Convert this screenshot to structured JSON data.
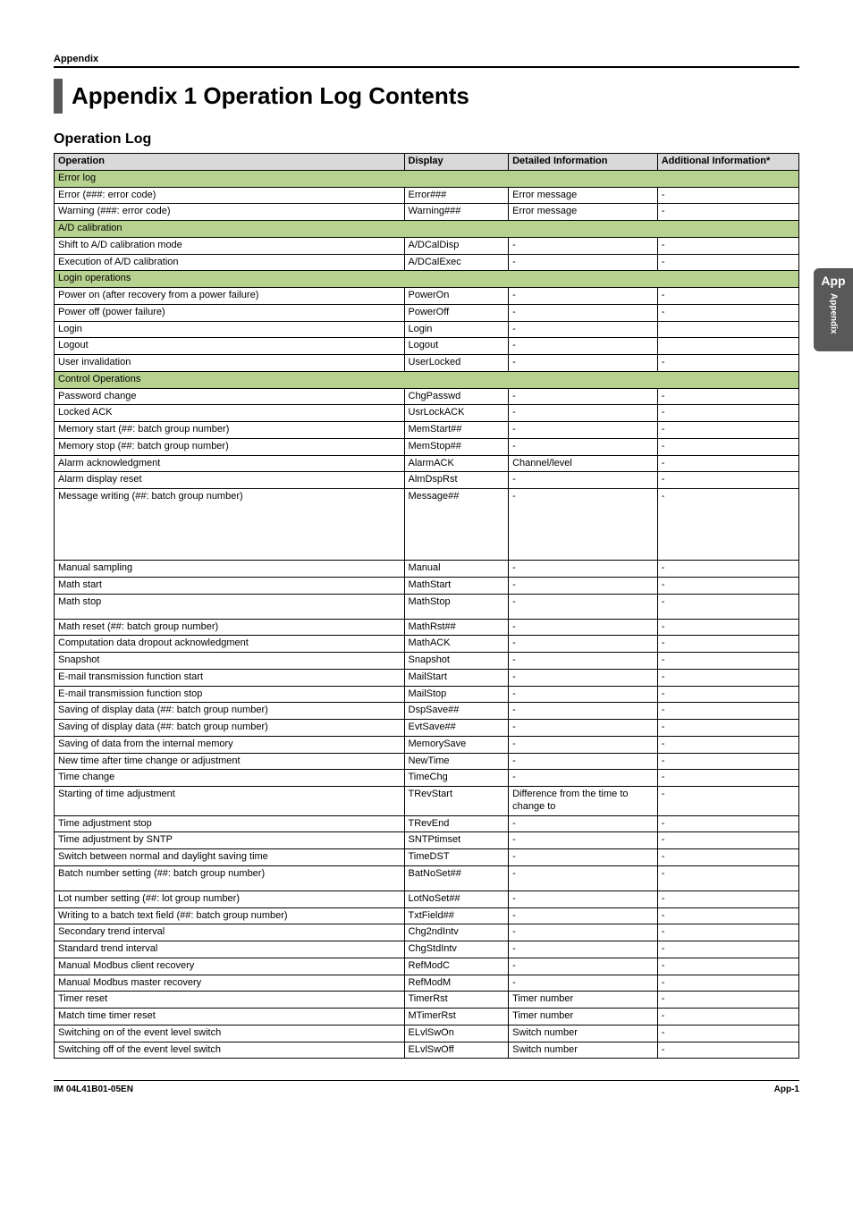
{
  "section_label": "Appendix",
  "page_title": "Appendix 1 Operation Log Contents",
  "subheading": "Operation Log",
  "side_tab": {
    "short": "App",
    "long": "Appendix"
  },
  "footer": {
    "left": "IM 04L41B01-05EN",
    "right": "App-1"
  },
  "columns": {
    "operation": "Operation",
    "display": "Display",
    "detailed": "Detailed Information",
    "additional": "Additional Information*"
  },
  "colors": {
    "header_bg": "#d9d9d9",
    "group_bg": "#b7d28e",
    "bar": "#595959",
    "tab_bg": "#595959",
    "tab_fg": "#ffffff",
    "border": "#000000",
    "page_bg": "#ffffff"
  },
  "rows": [
    {
      "type": "group",
      "op": "Error log"
    },
    {
      "op": "Error (###: error code)",
      "disp": "Error###",
      "det": "Error message",
      "add": "-"
    },
    {
      "op": "Warning (###: error code)",
      "disp": "Warning###",
      "det": "Error message",
      "add": "-"
    },
    {
      "type": "group",
      "op": "A/D calibration"
    },
    {
      "op": "Shift to A/D calibration mode",
      "disp": "A/DCalDisp",
      "det": "-",
      "add": "-"
    },
    {
      "op": "Execution of A/D calibration",
      "disp": "A/DCalExec",
      "det": "-",
      "add": "-"
    },
    {
      "type": "group",
      "op": "Login operations"
    },
    {
      "op": "Power on (after recovery from a power failure)",
      "disp": "PowerOn",
      "det": "-",
      "add": "-"
    },
    {
      "op": "Power off (power failure)",
      "disp": "PowerOff",
      "det": "-",
      "add": "-"
    },
    {
      "op": "Login",
      "disp": "Login",
      "det": "-",
      "add": ""
    },
    {
      "op": "Logout",
      "disp": "Logout",
      "det": "-",
      "add": ""
    },
    {
      "op": "User invalidation",
      "disp": "UserLocked",
      "det": "-",
      "add": "-"
    },
    {
      "type": "group",
      "op": "Control Operations"
    },
    {
      "op": "Password change",
      "disp": "ChgPasswd",
      "det": "-",
      "add": "-"
    },
    {
      "op": "Locked ACK",
      "disp": "UsrLockACK",
      "det": "-",
      "add": "-"
    },
    {
      "op": "Memory start (##: batch group number)",
      "disp": "MemStart##",
      "det": "-",
      "add": "-"
    },
    {
      "op": "Memory stop (##: batch group number)",
      "disp": "MemStop##",
      "det": "-",
      "add": "-"
    },
    {
      "op": "Alarm acknowledgment",
      "disp": "AlarmACK",
      "det": "Channel/level",
      "add": "-"
    },
    {
      "op": "Alarm display reset",
      "disp": "AlmDspRst",
      "det": "-",
      "add": "-"
    },
    {
      "op": "Message writing (##: batch group number)",
      "disp": "Message##",
      "det": "-",
      "add": "-",
      "tall": true
    },
    {
      "op": "Manual sampling",
      "disp": "Manual",
      "det": "-",
      "add": "-"
    },
    {
      "op": "Math start",
      "disp": "MathStart",
      "det": "-",
      "add": "-"
    },
    {
      "op": "Math stop",
      "disp": "MathStop",
      "det": "-",
      "add": "-",
      "two": true
    },
    {
      "op": "Math reset (##: batch group number)",
      "disp": "MathRst##",
      "det": "-",
      "add": "-"
    },
    {
      "op": "Computation data dropout acknowledgment",
      "disp": "MathACK",
      "det": "-",
      "add": "-"
    },
    {
      "op": "Snapshot",
      "disp": "Snapshot",
      "det": "-",
      "add": "-"
    },
    {
      "op": "E-mail transmission function start",
      "disp": "MailStart",
      "det": "-",
      "add": "-"
    },
    {
      "op": "E-mail transmission function stop",
      "disp": "MailStop",
      "det": "-",
      "add": "-"
    },
    {
      "op": "Saving of display data (##: batch group number)",
      "disp": "DspSave##",
      "det": "-",
      "add": "-"
    },
    {
      "op": "Saving of display data (##: batch group number)",
      "disp": "EvtSave##",
      "det": "-",
      "add": "-"
    },
    {
      "op": "Saving of data from the internal memory",
      "disp": "MemorySave",
      "det": "-",
      "add": "-"
    },
    {
      "op": "New time after time change or adjustment",
      "disp": "NewTime",
      "det": "-",
      "add": "-"
    },
    {
      "op": "Time change",
      "disp": "TimeChg",
      "det": "-",
      "add": "-"
    },
    {
      "op": "Starting of time adjustment",
      "disp": "TRevStart",
      "det": "Difference from the time to change to",
      "add": "-"
    },
    {
      "op": "Time adjustment stop",
      "disp": "TRevEnd",
      "det": "-",
      "add": "-"
    },
    {
      "op": "Time adjustment by SNTP",
      "disp": "SNTPtimset",
      "det": "-",
      "add": "-"
    },
    {
      "op": "Switch between normal and daylight saving time",
      "disp": "TimeDST",
      "det": "-",
      "add": "-"
    },
    {
      "op": "Batch number setting (##: batch group number)",
      "disp": "BatNoSet##",
      "det": "-",
      "add": "-",
      "two": true
    },
    {
      "op": "Lot number setting (##: lot group number)",
      "disp": "LotNoSet##",
      "det": "-",
      "add": "-"
    },
    {
      "op": "Writing to a batch text field (##: batch group number)",
      "disp": "TxtField##",
      "det": "-",
      "add": "-"
    },
    {
      "op": "Secondary trend interval",
      "disp": "Chg2ndIntv",
      "det": "-",
      "add": "-"
    },
    {
      "op": "Standard trend interval",
      "disp": "ChgStdIntv",
      "det": "-",
      "add": "-"
    },
    {
      "op": "Manual Modbus client recovery",
      "disp": "RefModC",
      "det": "-",
      "add": "-"
    },
    {
      "op": "Manual Modbus master recovery",
      "disp": "RefModM",
      "det": "-",
      "add": "-"
    },
    {
      "op": "Timer reset",
      "disp": "TimerRst",
      "det": "Timer number",
      "add": "-"
    },
    {
      "op": "Match time timer reset",
      "disp": "MTimerRst",
      "det": "Timer number",
      "add": "-"
    },
    {
      "op": "Switching on of the event level switch",
      "disp": "ELvlSwOn",
      "det": "Switch number",
      "add": "-"
    },
    {
      "op": "Switching off of the event level switch",
      "disp": "ELvlSwOff",
      "det": "Switch number",
      "add": "-"
    }
  ]
}
